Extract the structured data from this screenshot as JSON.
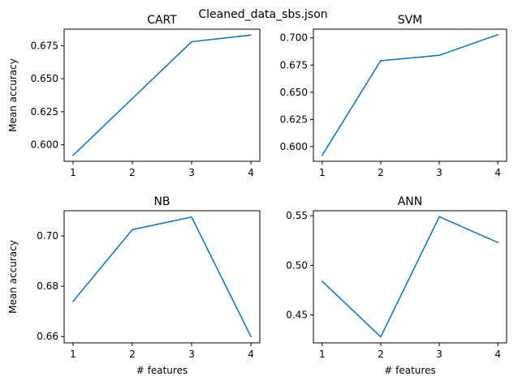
{
  "figure": {
    "suptitle": "Cleaned_data_sbs.json",
    "line_color": "#1f77b4"
  },
  "chart_data": [
    {
      "type": "line",
      "title": "CART",
      "xlabel": "",
      "ylabel": "Mean accuracy",
      "x": [
        1,
        2,
        3,
        4
      ],
      "values": [
        0.592,
        0.635,
        0.678,
        0.683
      ],
      "xticks": [
        "1",
        "2",
        "3",
        "4"
      ],
      "yticks": [
        0.6,
        0.625,
        0.65,
        0.675
      ],
      "ytick_labels": [
        "0.600",
        "0.625",
        "0.650",
        "0.675"
      ],
      "xlim": [
        0.85,
        4.15
      ],
      "ylim": [
        0.5875,
        0.6875
      ],
      "grid": false
    },
    {
      "type": "line",
      "title": "SVM",
      "xlabel": "",
      "ylabel": "",
      "x": [
        1,
        2,
        3,
        4
      ],
      "values": [
        0.592,
        0.679,
        0.684,
        0.703
      ],
      "xticks": [
        "1",
        "2",
        "3",
        "4"
      ],
      "yticks": [
        0.6,
        0.625,
        0.65,
        0.675,
        0.7
      ],
      "ytick_labels": [
        "0.600",
        "0.625",
        "0.650",
        "0.675",
        "0.700"
      ],
      "xlim": [
        0.85,
        4.15
      ],
      "ylim": [
        0.5865,
        0.708
      ],
      "grid": false
    },
    {
      "type": "line",
      "title": "NB",
      "xlabel": "# features",
      "ylabel": "Mean accuracy",
      "x": [
        1,
        2,
        3,
        4
      ],
      "values": [
        0.674,
        0.7025,
        0.7075,
        0.66
      ],
      "xticks": [
        "1",
        "2",
        "3",
        "4"
      ],
      "yticks": [
        0.66,
        0.68,
        0.7
      ],
      "ytick_labels": [
        "0.66",
        "0.68",
        "0.70"
      ],
      "xlim": [
        0.85,
        4.15
      ],
      "ylim": [
        0.6575,
        0.71
      ],
      "grid": false
    },
    {
      "type": "line",
      "title": "ANN",
      "xlabel": "# features",
      "ylabel": "",
      "x": [
        1,
        2,
        3,
        4
      ],
      "values": [
        0.484,
        0.428,
        0.549,
        0.523
      ],
      "xticks": [
        "1",
        "2",
        "3",
        "4"
      ],
      "yticks": [
        0.45,
        0.5,
        0.55
      ],
      "ytick_labels": [
        "0.45",
        "0.50",
        "0.55"
      ],
      "xlim": [
        0.85,
        4.15
      ],
      "ylim": [
        0.422,
        0.555
      ],
      "grid": false
    }
  ]
}
